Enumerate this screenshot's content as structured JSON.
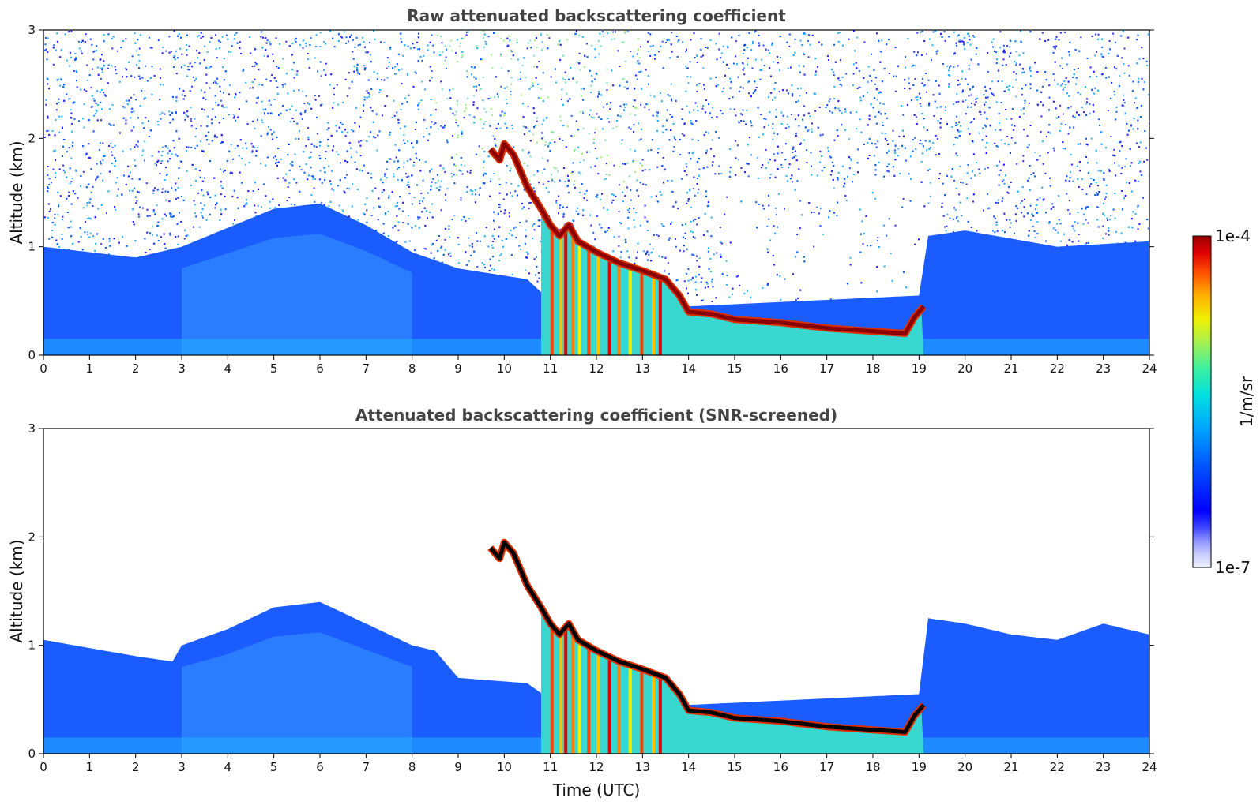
{
  "chart_data": [
    {
      "type": "heatmap",
      "title": "Raw attenuated backscattering coefficient",
      "xlabel": "",
      "ylabel": "Altitude (km)",
      "xlim": [
        0,
        24
      ],
      "ylim": [
        0,
        3
      ],
      "x_ticks": [
        "0",
        "1",
        "2",
        "3",
        "4",
        "5",
        "6",
        "7",
        "8",
        "9",
        "10",
        "11",
        "12",
        "13",
        "14",
        "15",
        "16",
        "17",
        "18",
        "19",
        "20",
        "21",
        "22",
        "23",
        "24"
      ],
      "y_ticks": [
        "0",
        "1",
        "2",
        "3"
      ],
      "background_noise": "high",
      "features": {
        "boundary_layer_top_km": [
          [
            0,
            1.0
          ],
          [
            2,
            0.9
          ],
          [
            3,
            1.0
          ],
          [
            5,
            1.35
          ],
          [
            6,
            1.4
          ],
          [
            7,
            1.2
          ],
          [
            8,
            0.95
          ],
          [
            9,
            0.8
          ],
          [
            10.5,
            0.7
          ],
          [
            11,
            0.5
          ],
          [
            14,
            0.45
          ],
          [
            19,
            0.55
          ],
          [
            19.2,
            1.1
          ],
          [
            20,
            1.15
          ],
          [
            22,
            1.0
          ],
          [
            24,
            1.05
          ]
        ],
        "cloud_layer_km": [
          [
            9.7,
            1.9
          ],
          [
            9.9,
            1.8
          ],
          [
            10.0,
            1.95
          ],
          [
            10.2,
            1.85
          ],
          [
            10.5,
            1.55
          ],
          [
            10.8,
            1.35
          ],
          [
            11.0,
            1.2
          ],
          [
            11.2,
            1.1
          ],
          [
            11.4,
            1.2
          ],
          [
            11.6,
            1.05
          ],
          [
            12.0,
            0.95
          ],
          [
            12.5,
            0.85
          ],
          [
            13.0,
            0.78
          ],
          [
            13.5,
            0.7
          ],
          [
            13.8,
            0.55
          ],
          [
            14.0,
            0.4
          ],
          [
            14.5,
            0.38
          ],
          [
            15.0,
            0.33
          ],
          [
            16.0,
            0.3
          ],
          [
            17.0,
            0.25
          ],
          [
            18.0,
            0.22
          ],
          [
            18.7,
            0.2
          ],
          [
            18.9,
            0.35
          ],
          [
            19.1,
            0.45
          ]
        ],
        "precip_streaks_x": [
          11.0,
          11.2,
          11.3,
          11.45,
          11.6,
          11.8,
          12.0,
          12.25,
          12.45,
          12.7,
          12.95,
          13.2,
          13.35
        ]
      }
    },
    {
      "type": "heatmap",
      "title": "Attenuated backscattering coefficient (SNR-screened)",
      "xlabel": "Time (UTC)",
      "ylabel": "Altitude (km)",
      "xlim": [
        0,
        24
      ],
      "ylim": [
        0,
        3
      ],
      "x_ticks": [
        "0",
        "1",
        "2",
        "3",
        "4",
        "5",
        "6",
        "7",
        "8",
        "9",
        "10",
        "11",
        "12",
        "13",
        "14",
        "15",
        "16",
        "17",
        "18",
        "19",
        "20",
        "21",
        "22",
        "23",
        "24"
      ],
      "y_ticks": [
        "0",
        "1",
        "2",
        "3"
      ],
      "background_noise": "screened",
      "features": {
        "boundary_layer_top_km": [
          [
            0,
            1.05
          ],
          [
            2,
            0.9
          ],
          [
            2.8,
            0.85
          ],
          [
            3,
            1.0
          ],
          [
            4,
            1.15
          ],
          [
            5,
            1.35
          ],
          [
            6,
            1.4
          ],
          [
            7,
            1.2
          ],
          [
            8,
            1.0
          ],
          [
            8.5,
            0.95
          ],
          [
            9,
            0.7
          ],
          [
            10.5,
            0.65
          ],
          [
            11,
            0.5
          ],
          [
            14,
            0.45
          ],
          [
            19,
            0.55
          ],
          [
            19.2,
            1.25
          ],
          [
            20,
            1.2
          ],
          [
            21,
            1.1
          ],
          [
            22,
            1.05
          ],
          [
            23,
            1.2
          ],
          [
            24,
            1.1
          ]
        ],
        "cloud_layer_km": [
          [
            9.7,
            1.9
          ],
          [
            9.9,
            1.8
          ],
          [
            10.0,
            1.95
          ],
          [
            10.2,
            1.85
          ],
          [
            10.5,
            1.55
          ],
          [
            10.8,
            1.35
          ],
          [
            11.0,
            1.2
          ],
          [
            11.2,
            1.1
          ],
          [
            11.4,
            1.2
          ],
          [
            11.6,
            1.05
          ],
          [
            12.0,
            0.95
          ],
          [
            12.5,
            0.85
          ],
          [
            13.0,
            0.78
          ],
          [
            13.5,
            0.7
          ],
          [
            13.8,
            0.55
          ],
          [
            14.0,
            0.4
          ],
          [
            14.5,
            0.38
          ],
          [
            15.0,
            0.33
          ],
          [
            16.0,
            0.3
          ],
          [
            17.0,
            0.25
          ],
          [
            18.0,
            0.22
          ],
          [
            18.7,
            0.2
          ],
          [
            18.9,
            0.35
          ],
          [
            19.1,
            0.45
          ]
        ],
        "precip_streaks_x": [
          11.0,
          11.2,
          11.3,
          11.45,
          11.6,
          11.8,
          12.0,
          12.25,
          12.45,
          12.7,
          12.95,
          13.2,
          13.35
        ]
      }
    }
  ],
  "colorbar": {
    "label": "1/m/sr",
    "max_label": "1e-4",
    "min_label": "1e-7",
    "colors": [
      "#eef0ff",
      "#c8ccff",
      "#8e94ff",
      "#3e46ff",
      "#0000ff",
      "#0050ff",
      "#00a6ff",
      "#00e0e0",
      "#3cf0a0",
      "#a8f050",
      "#f0f000",
      "#ffb000",
      "#ff5000",
      "#e00000",
      "#9a0000"
    ]
  }
}
